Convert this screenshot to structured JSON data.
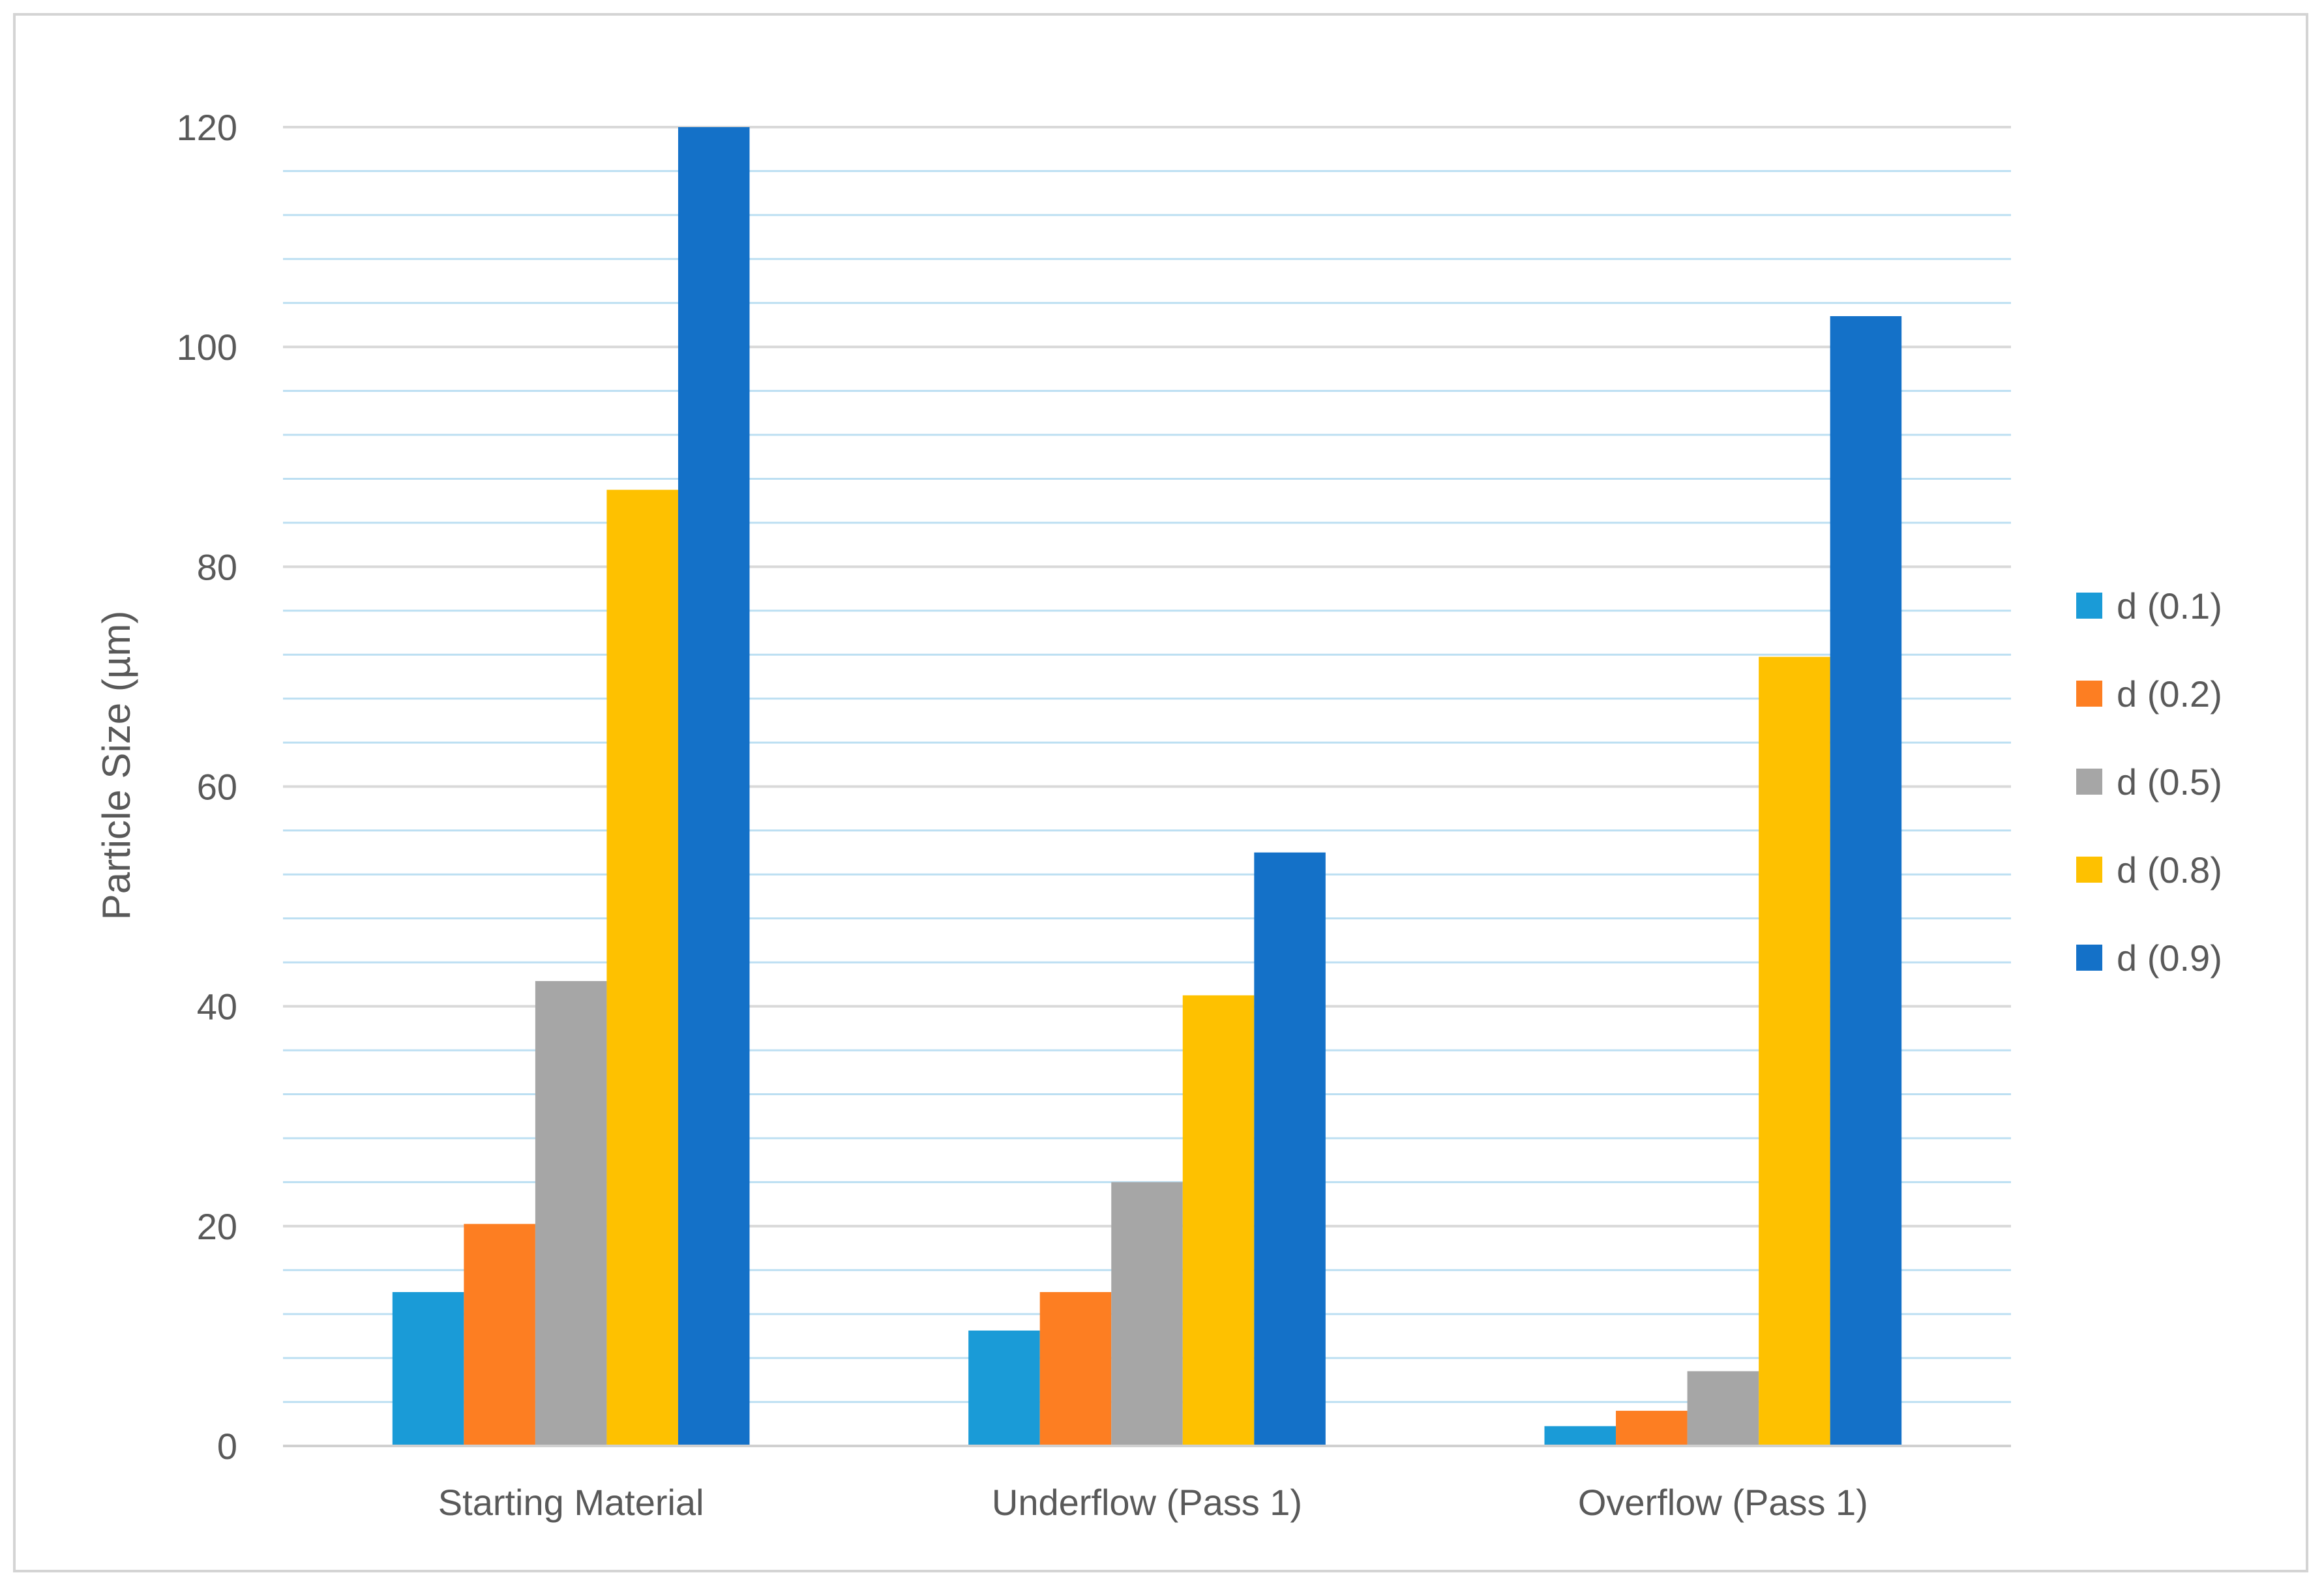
{
  "chart_data": {
    "type": "bar",
    "title": "",
    "xlabel": "",
    "ylabel": "Particle Size (µm)",
    "categories": [
      "Starting Material",
      "Underflow (Pass 1)",
      "Overflow (Pass 1)"
    ],
    "series": [
      {
        "name": "d (0.1)",
        "color": "#1a9bd7",
        "values": [
          14,
          10.5,
          1.8
        ]
      },
      {
        "name": "d (0.2)",
        "color": "#fd7e22",
        "values": [
          20.2,
          14,
          3.2
        ]
      },
      {
        "name": "d (0.5)",
        "color": "#a6a6a6",
        "values": [
          42.3,
          24,
          6.8
        ]
      },
      {
        "name": "d (0.8)",
        "color": "#fec100",
        "values": [
          87,
          41,
          71.8
        ]
      },
      {
        "name": "d (0.9)",
        "color": "#1471c8",
        "values": [
          120,
          54,
          102.8
        ]
      }
    ],
    "ylim": [
      0,
      120
    ],
    "yticks": [
      0,
      20,
      40,
      60,
      80,
      100,
      120
    ],
    "major_gridline_color": "#d9d9d9",
    "minor_gridline_color": "#bcdff2",
    "grid": true,
    "legend_position": "right"
  }
}
